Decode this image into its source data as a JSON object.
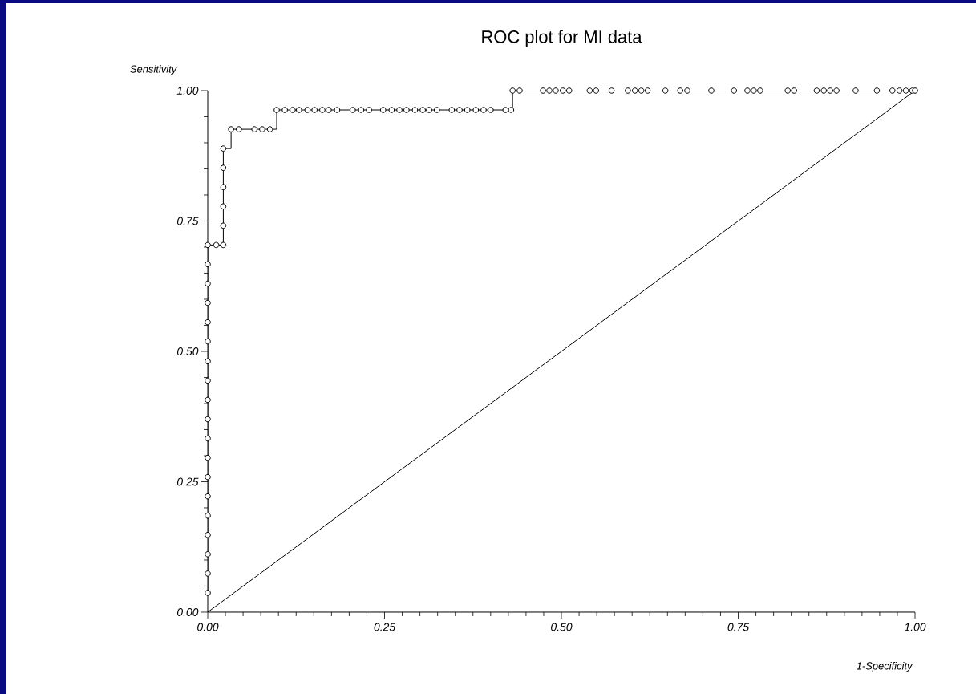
{
  "chart_data": {
    "type": "step",
    "title": "ROC plot for MI data",
    "xlabel": "1-Specificity",
    "ylabel": "Sensitivity",
    "xlim": [
      0,
      1
    ],
    "ylim": [
      0,
      1
    ],
    "xticks": [
      {
        "value": 0,
        "label": "0.00"
      },
      {
        "value": 0.25,
        "label": "0.25"
      },
      {
        "value": 0.5,
        "label": "0.50"
      },
      {
        "value": 0.75,
        "label": "0.75"
      },
      {
        "value": 1,
        "label": "1.00"
      }
    ],
    "yticks": [
      {
        "value": 0,
        "label": "0.00"
      },
      {
        "value": 0.25,
        "label": "0.25"
      },
      {
        "value": 0.5,
        "label": "0.50"
      },
      {
        "value": 0.75,
        "label": "0.75"
      },
      {
        "value": 1,
        "label": "1.00"
      }
    ],
    "series": [
      {
        "color": "#000000",
        "marker": "circle",
        "line_style": "solid",
        "x": [
          0,
          0,
          0,
          0,
          0,
          0,
          0,
          0,
          0,
          0,
          0,
          0,
          0,
          0,
          0,
          0,
          0,
          0,
          0,
          0.012,
          0.022,
          0.022,
          0.022,
          0.022,
          0.022,
          0.022,
          0.033,
          0.044,
          0.066,
          0.077,
          0.088,
          0.0975,
          0.109,
          0.12,
          0.129,
          0.141,
          0.151,
          0.162,
          0.171,
          0.183,
          0.205,
          0.217,
          0.228,
          0.248,
          0.26,
          0.271,
          0.281,
          0.293,
          0.304,
          0.313,
          0.324,
          0.345,
          0.356,
          0.367,
          0.379,
          0.39,
          0.4,
          0.421,
          0.429,
          0.431,
          0.441,
          0.474,
          0.483,
          0.492,
          0.502,
          0.511,
          0.54,
          0.549,
          0.571,
          0.594,
          0.604,
          0.613,
          0.622,
          0.647,
          0.668,
          0.678,
          0.712,
          0.744,
          0.763,
          0.772,
          0.781,
          0.82,
          0.829,
          0.861,
          0.871,
          0.88,
          0.889,
          0.916,
          0.946,
          0.968,
          0.978,
          0.987,
          0.996,
          1.0
        ],
        "values": [
          0.037,
          0.074,
          0.111,
          0.148,
          0.185,
          0.222,
          0.259,
          0.296,
          0.333,
          0.37,
          0.407,
          0.444,
          0.481,
          0.519,
          0.556,
          0.593,
          0.63,
          0.667,
          0.704,
          0.704,
          0.704,
          0.741,
          0.778,
          0.815,
          0.852,
          0.889,
          0.926,
          0.926,
          0.926,
          0.926,
          0.926,
          0.963,
          0.963,
          0.963,
          0.963,
          0.963,
          0.963,
          0.963,
          0.963,
          0.963,
          0.963,
          0.963,
          0.963,
          0.963,
          0.963,
          0.963,
          0.963,
          0.963,
          0.963,
          0.963,
          0.963,
          0.963,
          0.963,
          0.963,
          0.963,
          0.963,
          0.963,
          0.963,
          0.963,
          1,
          1,
          1,
          1,
          1,
          1,
          1,
          1,
          1,
          1,
          1,
          1,
          1,
          1,
          1,
          1,
          1,
          1,
          1,
          1,
          1,
          1,
          1,
          1,
          1,
          1,
          1,
          1,
          1,
          1,
          1,
          1,
          1,
          1,
          1
        ]
      },
      {
        "type": "line",
        "color": "#000000",
        "marker": "none",
        "line_style": "solid",
        "x": [
          0,
          1
        ],
        "values": [
          0,
          1
        ]
      }
    ]
  }
}
